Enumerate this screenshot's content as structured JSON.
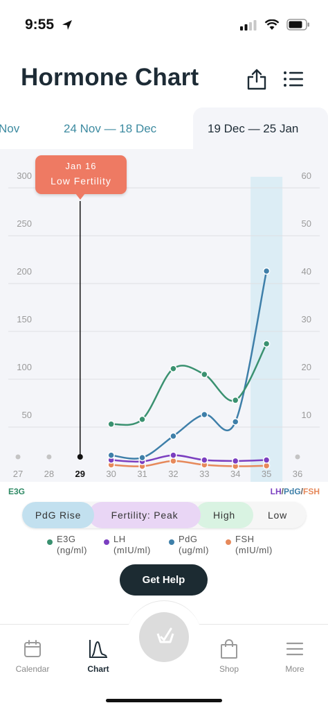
{
  "status": {
    "time": "9:55"
  },
  "header": {
    "title": "Hormone Chart",
    "share_icon": "share-icon",
    "list_icon": "list-icon"
  },
  "tabs": [
    {
      "label": "Nov"
    },
    {
      "label": "24 Nov — 18 Dec"
    },
    {
      "label": "19 Dec — 25 Jan"
    }
  ],
  "tooltip": {
    "date": "Jan 16",
    "label": "Low Fertility"
  },
  "chart_data": {
    "type": "line",
    "x": [
      27,
      28,
      29,
      30,
      31,
      32,
      33,
      34,
      35,
      36
    ],
    "x_labels": [
      "27",
      "28",
      "29",
      "30",
      "31",
      "32",
      "33",
      "34",
      "35",
      "36"
    ],
    "selected_x": 29,
    "highlight_x": 35,
    "left_axis": {
      "title": "E3G",
      "ticks": [
        50,
        100,
        150,
        200,
        250,
        300
      ],
      "range": [
        0,
        300
      ]
    },
    "right_axis": {
      "title_parts": [
        "LH",
        "/",
        "PdG",
        "/",
        "FSH"
      ],
      "ticks": [
        10,
        20,
        30,
        40,
        50,
        60
      ],
      "range": [
        0,
        60
      ]
    },
    "series": [
      {
        "name": "E3G",
        "axis": "left",
        "color": "#3a9170",
        "points": [
          [
            30,
            40
          ],
          [
            31,
            45
          ],
          [
            32,
            98
          ],
          [
            33,
            92
          ],
          [
            34,
            65
          ],
          [
            35,
            124
          ]
        ]
      },
      {
        "name": "PdG",
        "axis": "right",
        "color": "#3e7fa9",
        "points": [
          [
            30,
            1.5
          ],
          [
            31,
            1.0
          ],
          [
            32,
            5.5
          ],
          [
            33,
            10.0
          ],
          [
            34,
            8.5
          ],
          [
            35,
            40.0
          ]
        ]
      },
      {
        "name": "LH",
        "axis": "right",
        "color": "#7b3fc0",
        "points": [
          [
            30,
            0.5
          ],
          [
            31,
            0.2
          ],
          [
            32,
            1.5
          ],
          [
            33,
            0.5
          ],
          [
            34,
            0.3
          ],
          [
            35,
            0.5
          ]
        ]
      },
      {
        "name": "FSH",
        "axis": "right",
        "color": "#e6895b",
        "points": [
          [
            30,
            -0.5
          ],
          [
            31,
            -0.8
          ],
          [
            32,
            0.3
          ],
          [
            33,
            -0.5
          ],
          [
            34,
            -0.8
          ],
          [
            35,
            -0.7
          ]
        ]
      }
    ]
  },
  "phases": [
    {
      "label": "PdG Rise",
      "color": "#c2e0ef"
    },
    {
      "label": "Fertility: Peak",
      "color": "#e9d6f5"
    },
    {
      "label": "High",
      "color": "#d9f3e2"
    },
    {
      "label": "Low",
      "color": "#f6f6f6"
    }
  ],
  "legend": [
    {
      "name": "E3G",
      "unit": "(ng/ml)",
      "color": "#3a9170"
    },
    {
      "name": "LH",
      "unit": "(mIU/ml)",
      "color": "#7b3fc0"
    },
    {
      "name": "PdG",
      "unit": "(ug/ml)",
      "color": "#3e7fa9"
    },
    {
      "name": "FSH",
      "unit": "(mIU/ml)",
      "color": "#e6895b"
    }
  ],
  "help_button": "Get Help",
  "nav": [
    {
      "label": "Calendar",
      "icon": "calendar-icon"
    },
    {
      "label": "Chart",
      "icon": "chart-icon",
      "active": true
    },
    {
      "label": "Shop",
      "icon": "shop-icon"
    },
    {
      "label": "More",
      "icon": "menu-icon"
    }
  ],
  "center_button_icon": "test-check-icon"
}
